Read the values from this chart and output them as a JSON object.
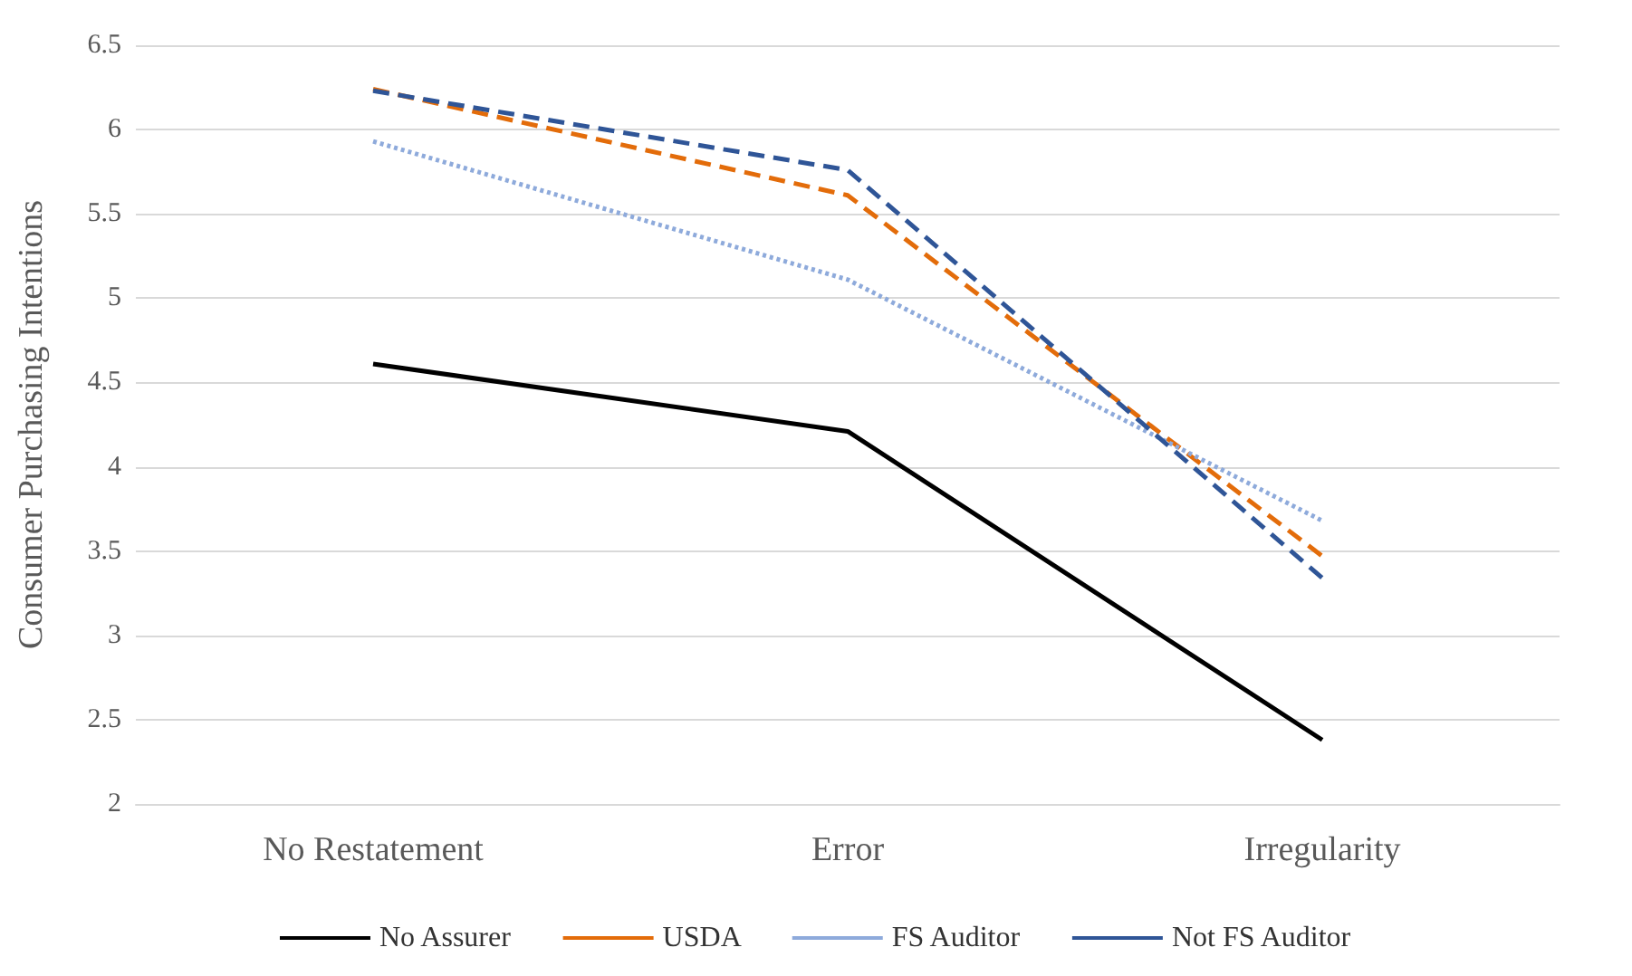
{
  "chart_data": {
    "type": "line",
    "ylabel": "Consumer Purchasing Intentions",
    "categories": [
      "No Restatement",
      "Error",
      "Irregularity"
    ],
    "series": [
      {
        "name": "No Assurer",
        "color": "#000000",
        "line_style": "solid",
        "values": [
          4.61,
          4.21,
          2.38
        ]
      },
      {
        "name": "USDA",
        "color": "#e36c0a",
        "line_style": "dashed",
        "values": [
          6.24,
          5.61,
          3.47
        ]
      },
      {
        "name": "FS Auditor",
        "color": "#8eaadb",
        "line_style": "dotted",
        "values": [
          5.93,
          5.11,
          3.68
        ]
      },
      {
        "name": "Not FS Auditor",
        "color": "#2f5597",
        "line_style": "dashed",
        "values": [
          6.23,
          5.76,
          3.34
        ]
      }
    ],
    "ylim": [
      2,
      6.5
    ],
    "yticks": [
      2,
      2.5,
      3,
      3.5,
      4,
      4.5,
      5,
      5.5,
      6,
      6.5
    ],
    "grid": "y",
    "legend": "bottom",
    "marker": "none"
  }
}
